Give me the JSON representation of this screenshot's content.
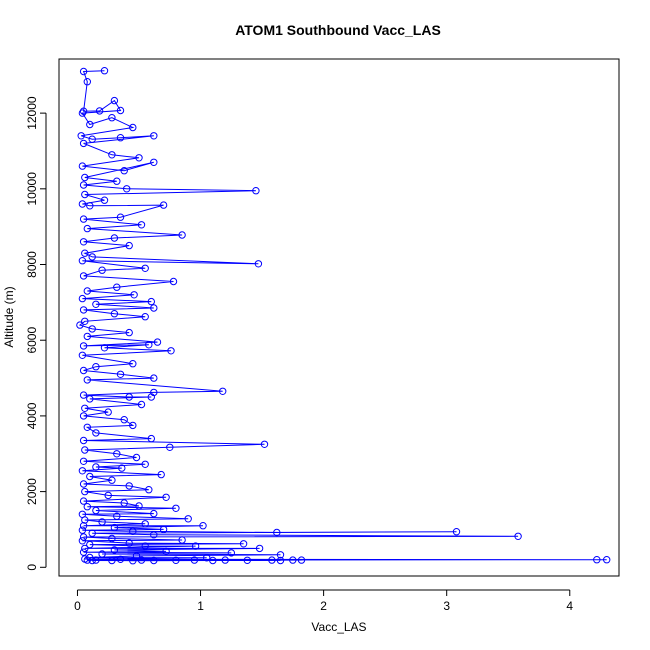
{
  "chart_data": {
    "type": "line",
    "title": "ATOM1 Southbound Vacc_LAS",
    "xlabel": "Vacc_LAS",
    "ylabel": "Altitude (m)",
    "xlim": [
      -0.15,
      4.4
    ],
    "ylim": [
      -230,
      13430
    ],
    "x_ticks": [
      0,
      1,
      2,
      3,
      4
    ],
    "y_ticks": [
      0,
      2000,
      4000,
      6000,
      8000,
      10000,
      12000
    ],
    "grid": false,
    "legend": "none",
    "colors": {
      "series": "#0000ff",
      "axis": "#000000",
      "background": "#ffffff"
    },
    "series": [
      {
        "marker": "open-circle",
        "points": [
          [
            0.22,
            13120
          ],
          [
            0.05,
            13100
          ],
          [
            0.08,
            12830
          ],
          [
            0.05,
            12050
          ],
          [
            0.18,
            12060
          ],
          [
            0.3,
            12330
          ],
          [
            0.35,
            12070
          ],
          [
            0.04,
            12000
          ],
          [
            0.1,
            11700
          ],
          [
            0.28,
            11880
          ],
          [
            0.45,
            11620
          ],
          [
            0.03,
            11400
          ],
          [
            0.12,
            11310
          ],
          [
            0.35,
            11350
          ],
          [
            0.62,
            11400
          ],
          [
            0.05,
            11200
          ],
          [
            0.28,
            10900
          ],
          [
            0.5,
            10820
          ],
          [
            0.04,
            10600
          ],
          [
            0.38,
            10480
          ],
          [
            0.62,
            10700
          ],
          [
            0.06,
            10300
          ],
          [
            0.32,
            10200
          ],
          [
            0.05,
            10100
          ],
          [
            0.4,
            10000
          ],
          [
            1.45,
            9950
          ],
          [
            0.06,
            9850
          ],
          [
            0.22,
            9700
          ],
          [
            0.04,
            9600
          ],
          [
            0.1,
            9550
          ],
          [
            0.7,
            9570
          ],
          [
            0.35,
            9250
          ],
          [
            0.05,
            9200
          ],
          [
            0.52,
            9050
          ],
          [
            0.08,
            8950
          ],
          [
            0.85,
            8780
          ],
          [
            0.3,
            8700
          ],
          [
            0.05,
            8600
          ],
          [
            0.42,
            8500
          ],
          [
            0.06,
            8300
          ],
          [
            0.12,
            8200
          ],
          [
            1.47,
            8020
          ],
          [
            0.04,
            8100
          ],
          [
            0.55,
            7900
          ],
          [
            0.2,
            7850
          ],
          [
            0.05,
            7700
          ],
          [
            0.78,
            7550
          ],
          [
            0.32,
            7400
          ],
          [
            0.08,
            7300
          ],
          [
            0.46,
            7200
          ],
          [
            0.04,
            7100
          ],
          [
            0.6,
            7020
          ],
          [
            0.15,
            6950
          ],
          [
            0.62,
            6850
          ],
          [
            0.05,
            6800
          ],
          [
            0.3,
            6700
          ],
          [
            0.55,
            6620
          ],
          [
            0.06,
            6500
          ],
          [
            0.02,
            6400
          ],
          [
            0.12,
            6300
          ],
          [
            0.42,
            6200
          ],
          [
            0.08,
            6100
          ],
          [
            0.65,
            5950
          ],
          [
            0.05,
            5850
          ],
          [
            0.58,
            5880
          ],
          [
            0.22,
            5800
          ],
          [
            0.76,
            5720
          ],
          [
            0.04,
            5600
          ],
          [
            0.45,
            5380
          ],
          [
            0.15,
            5300
          ],
          [
            0.05,
            5200
          ],
          [
            0.35,
            5100
          ],
          [
            0.62,
            5000
          ],
          [
            0.08,
            4950
          ],
          [
            1.18,
            4650
          ],
          [
            0.62,
            4620
          ],
          [
            0.05,
            4550
          ],
          [
            0.42,
            4500
          ],
          [
            0.6,
            4500
          ],
          [
            0.1,
            4450
          ],
          [
            0.52,
            4300
          ],
          [
            0.06,
            4200
          ],
          [
            0.25,
            4100
          ],
          [
            0.05,
            4000
          ],
          [
            0.38,
            3900
          ],
          [
            0.45,
            3750
          ],
          [
            0.08,
            3700
          ],
          [
            0.15,
            3550
          ],
          [
            0.6,
            3400
          ],
          [
            0.05,
            3350
          ],
          [
            1.52,
            3250
          ],
          [
            0.75,
            3170
          ],
          [
            0.06,
            3100
          ],
          [
            0.32,
            3000
          ],
          [
            0.48,
            2900
          ],
          [
            0.05,
            2800
          ],
          [
            0.55,
            2720
          ],
          [
            0.15,
            2650
          ],
          [
            0.36,
            2620
          ],
          [
            0.04,
            2550
          ],
          [
            0.68,
            2450
          ],
          [
            0.1,
            2400
          ],
          [
            0.28,
            2300
          ],
          [
            0.05,
            2200
          ],
          [
            0.42,
            2150
          ],
          [
            0.58,
            2050
          ],
          [
            0.06,
            2000
          ],
          [
            0.25,
            1900
          ],
          [
            0.72,
            1850
          ],
          [
            0.05,
            1750
          ],
          [
            0.38,
            1700
          ],
          [
            0.5,
            1620
          ],
          [
            0.08,
            1600
          ],
          [
            0.8,
            1560
          ],
          [
            0.15,
            1500
          ],
          [
            0.62,
            1420
          ],
          [
            0.04,
            1400
          ],
          [
            0.32,
            1350
          ],
          [
            0.9,
            1280
          ],
          [
            0.06,
            1250
          ],
          [
            0.2,
            1200
          ],
          [
            0.55,
            1150
          ],
          [
            0.05,
            1100
          ],
          [
            1.02,
            1100
          ],
          [
            0.3,
            1050
          ],
          [
            0.7,
            1000
          ],
          [
            0.04,
            980
          ],
          [
            0.45,
            950
          ],
          [
            1.62,
            920
          ],
          [
            3.08,
            940
          ],
          [
            0.12,
            900
          ],
          [
            0.62,
            860
          ],
          [
            3.58,
            820
          ],
          [
            0.05,
            800
          ],
          [
            0.28,
            760
          ],
          [
            0.85,
            720
          ],
          [
            0.04,
            700
          ],
          [
            0.42,
            640
          ],
          [
            1.35,
            620
          ],
          [
            0.1,
            600
          ],
          [
            0.55,
            560
          ],
          [
            0.96,
            560
          ],
          [
            0.06,
            500
          ],
          [
            1.48,
            500
          ],
          [
            0.3,
            460
          ],
          [
            0.72,
            420
          ],
          [
            0.05,
            400
          ],
          [
            1.25,
            380
          ],
          [
            0.2,
            350
          ],
          [
            1.65,
            330
          ],
          [
            0.48,
            300
          ],
          [
            0.1,
            260
          ],
          [
            1.05,
            250
          ],
          [
            0.06,
            220
          ],
          [
            0.35,
            210
          ],
          [
            4.22,
            200
          ],
          [
            4.3,
            200
          ],
          [
            0.08,
            190
          ],
          [
            0.15,
            190
          ],
          [
            0.52,
            190
          ],
          [
            0.95,
            190
          ],
          [
            1.2,
            190
          ],
          [
            1.58,
            190
          ],
          [
            1.75,
            190
          ],
          [
            1.82,
            190
          ],
          [
            0.28,
            180
          ],
          [
            0.62,
            180
          ],
          [
            0.8,
            185
          ],
          [
            1.38,
            185
          ],
          [
            0.12,
            180
          ],
          [
            0.45,
            175
          ],
          [
            1.1,
            180
          ],
          [
            1.65,
            180
          ]
        ]
      }
    ]
  }
}
